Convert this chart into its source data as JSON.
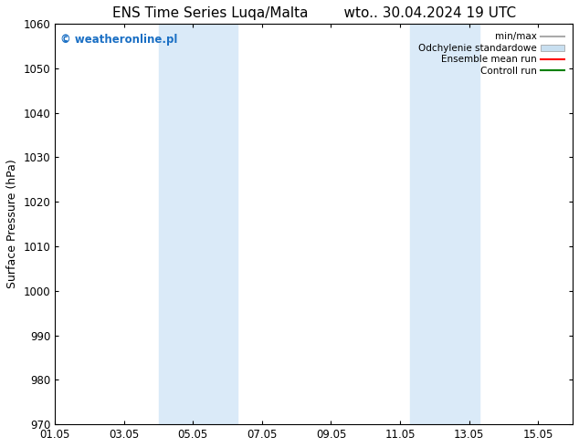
{
  "title_left": "ENS Time Series Luqa/Malta",
  "title_right": "wto.. 30.04.2024 19 UTC",
  "ylabel": "Surface Pressure (hPa)",
  "xlim": [
    0,
    15
  ],
  "ylim": [
    970,
    1060
  ],
  "yticks": [
    970,
    980,
    990,
    1000,
    1010,
    1020,
    1030,
    1040,
    1050,
    1060
  ],
  "xtick_labels": [
    "01.05",
    "03.05",
    "05.05",
    "07.05",
    "09.05",
    "11.05",
    "13.05",
    "15.05"
  ],
  "xtick_positions": [
    0,
    2,
    4,
    6,
    8,
    10,
    12,
    14
  ],
  "shaded_regions": [
    {
      "x_start": 3.0,
      "x_end": 5.3
    },
    {
      "x_start": 10.3,
      "x_end": 12.3
    }
  ],
  "shaded_color": "#daeaf8",
  "background_color": "#ffffff",
  "watermark_text": "© weatheronline.pl",
  "watermark_color": "#1a6fc4",
  "legend_entries": [
    {
      "label": "min/max",
      "color": "#aaaaaa",
      "style": "line",
      "lw": 1.5
    },
    {
      "label": "Odchylenie standardowe",
      "color": "#c8dff0",
      "style": "bar"
    },
    {
      "label": "Ensemble mean run",
      "color": "red",
      "style": "line",
      "lw": 1.5
    },
    {
      "label": "Controll run",
      "color": "green",
      "style": "line",
      "lw": 1.5
    }
  ],
  "title_fontsize": 11,
  "axis_fontsize": 9,
  "tick_fontsize": 8.5,
  "watermark_fontsize": 8.5,
  "legend_fontsize": 7.5
}
